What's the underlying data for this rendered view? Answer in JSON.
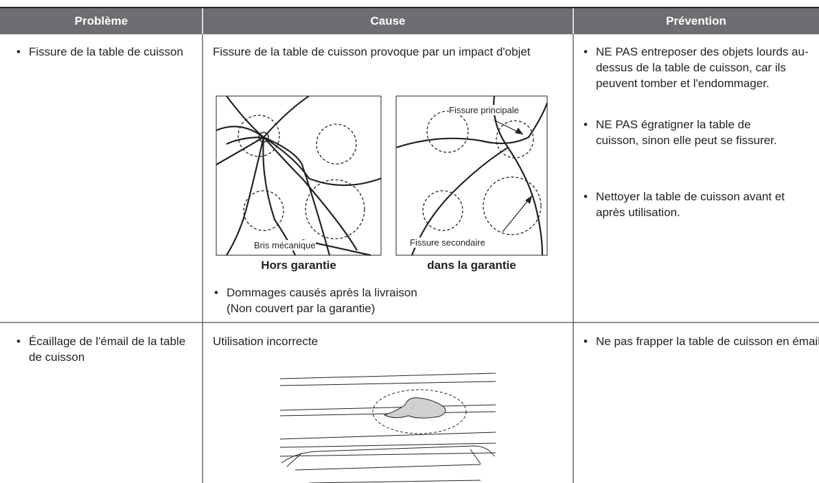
{
  "table": {
    "headers": [
      "Problème",
      "Cause",
      "Prévention"
    ],
    "rows": [
      {
        "problem": "Fissure de la table de cuisson",
        "cause": {
          "text": "Fissure de la table de cuisson provoque par un impact d'objet",
          "figures": [
            {
              "labels": [
                "Bris mécanique"
              ],
              "caption": "Hors garantie"
            },
            {
              "labels": [
                "Fissure principale",
                "Fissure secondaire"
              ],
              "caption": "dans la garantie"
            }
          ],
          "note": [
            "Dommages causés après la livraison",
            "(Non couvert par la garantie)"
          ]
        },
        "prevention": [
          "NE PAS entreposer des objets lourds au-dessus de la table de cuisson, car ils peuvent tomber et l'endommager.",
          "NE PAS égratigner la table de cuisson, sinon elle peut se fissurer.",
          "Nettoyer la table de cuisson avant et après utilisation."
        ]
      },
      {
        "problem": "Écaillage de l'émail de la table de cuisson",
        "cause": {
          "text": "Utilisation incorrecte"
        },
        "prevention": [
          "Ne pas frapper la table de cuisson en émail"
        ]
      }
    ]
  }
}
